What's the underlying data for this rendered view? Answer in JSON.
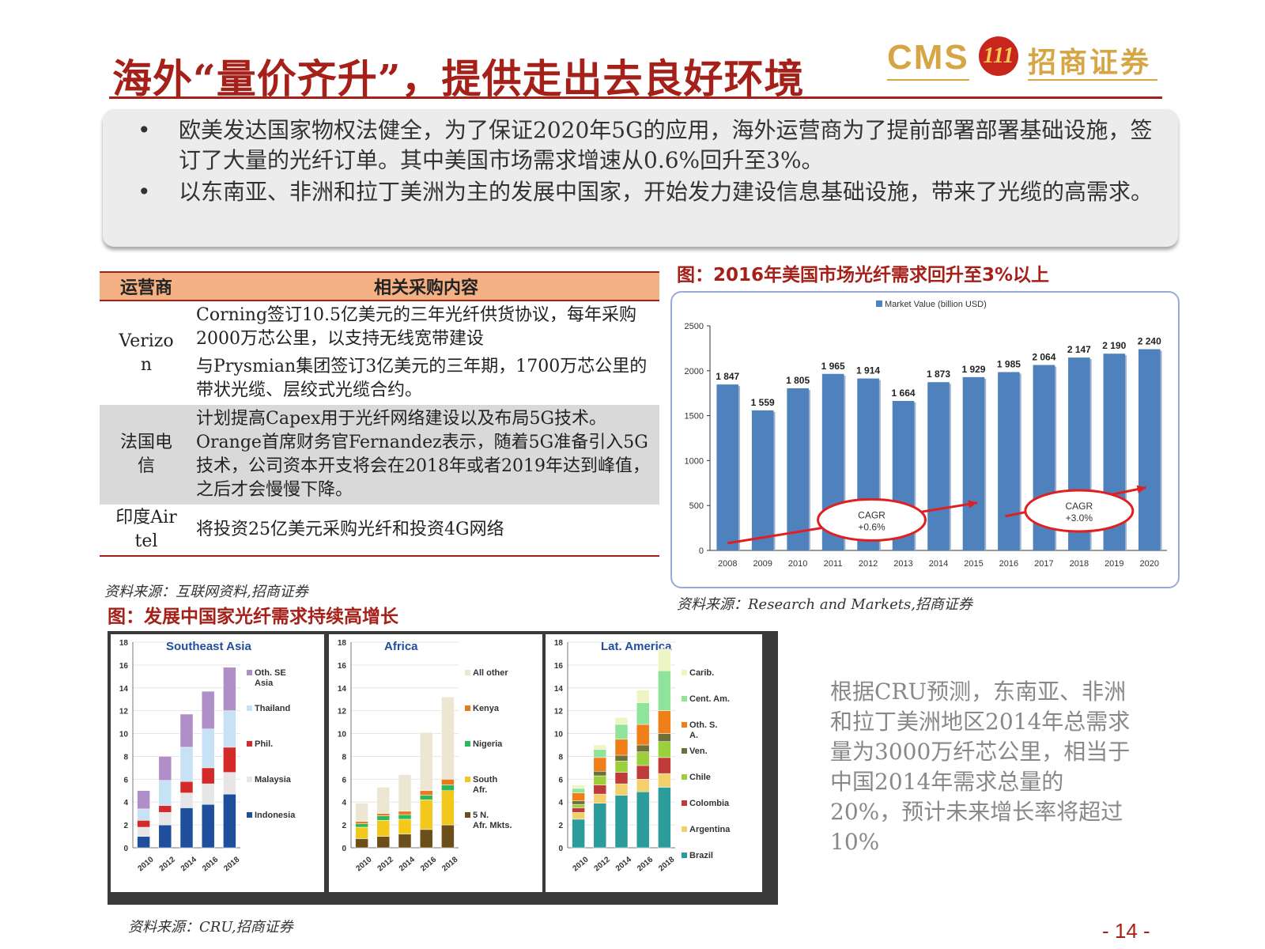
{
  "header": {
    "title": "海外“量价齐升”，提供走出去良好环境",
    "logo_cms": "CMS",
    "logo_mark": "111",
    "logo_text": "招商证券"
  },
  "summary": {
    "bullets": [
      {
        "dot": "•",
        "text": "欧美发达国家物权法健全，为了保证2020年5G的应用，海外运营商为了提前部署部署基础设施，签订了大量的光纤订单。其中美国市场需求增速从0.6%回升至3%。"
      },
      {
        "dot": "•",
        "text": "以东南亚、非洲和拉丁美洲为主的发展中国家，开始发力建设信息基础设施，带来了光缆的高需求。"
      }
    ]
  },
  "table": {
    "headers": [
      "运营商",
      "相关采购内容"
    ],
    "rows": [
      {
        "operator": "Verizon",
        "content": "Corning签订10.5亿美元的三年光纤供货协议，每年采购2000万芯公里，以支持无线宽带建设"
      },
      {
        "operator": "",
        "content": "与Prysmian集团签订3亿美元的三年期，1700万芯公里的带状光缆、层绞式光缆合约。"
      },
      {
        "operator": "法国电信",
        "content": "计划提高Capex用于光纤网络建设以及布局5G技术。Orange首席财务官Fernandez表示，随着5G准备引入5G技术，公司资本开支将会在2018年或者2019年达到峰值，之后才会慢慢下降。"
      },
      {
        "operator": "印度Airtel",
        "content": "将投资25亿美元采购光纤和投资4G网络"
      }
    ],
    "source": "资料来源：互联网资料,招商证券"
  },
  "fig_us": {
    "title": "图：2016年美国市场光纤需求回升至3%以上",
    "source": "资料来源：Research and Markets,招商证券"
  },
  "fig_dev": {
    "title": "图：发展中国家光纤需求持续高增长",
    "source": "资料来源：CRU,招商证券"
  },
  "cru_text": "根据CRU预测，东南亚、非洲和拉丁美洲地区2014年总需求量为3000万纤芯公里，相当于中国2014年需求总量的20%，预计未来增长率将超过10%",
  "page_number": "- 14 -",
  "chart_data": [
    {
      "type": "bar",
      "legend": "Market Value (billion USD)",
      "categories": [
        "2008",
        "2009",
        "2010",
        "2011",
        "2012",
        "2013",
        "2014",
        "2015",
        "2016",
        "2017",
        "2018",
        "2019",
        "2020"
      ],
      "values": [
        1847,
        1559,
        1805,
        1965,
        1914,
        1664,
        1873,
        1929,
        1985,
        2064,
        2147,
        2190,
        2240
      ],
      "labels": [
        "1 847",
        "1 559",
        "1 805",
        "1 965",
        "1 914",
        "1 664",
        "1 873",
        "1 929",
        "1 985",
        "2 064",
        "2 147",
        "2 190",
        "2 240"
      ],
      "ylim": [
        0,
        2500
      ],
      "yticks": [
        "0",
        "500",
        "1000",
        "1500",
        "2000",
        "2500"
      ],
      "annotations": [
        {
          "line1": "CAGR",
          "line2": "+0.6%"
        },
        {
          "line1": "CAGR",
          "line2": "+3.0%"
        }
      ],
      "color": "#4f81bd"
    },
    {
      "type": "bar",
      "stacked": true,
      "title": "Southeast Asia",
      "categories": [
        "2010",
        "2012",
        "2014",
        "2016",
        "2018"
      ],
      "ylim": [
        0,
        18
      ],
      "yticks": [
        "0",
        "2",
        "4",
        "6",
        "8",
        "10",
        "12",
        "14",
        "16",
        "18"
      ],
      "series": [
        {
          "name": "Indonesia",
          "color": "#1f4e9c",
          "values": [
            1.0,
            2.0,
            3.5,
            3.8,
            4.7
          ]
        },
        {
          "name": "Malaysia",
          "color": "#e6e6e6",
          "values": [
            0.8,
            1.1,
            1.3,
            1.8,
            1.9
          ]
        },
        {
          "name": "Phil.",
          "color": "#d42a2a",
          "values": [
            0.6,
            0.6,
            1.0,
            1.4,
            2.2
          ]
        },
        {
          "name": "Thailand",
          "color": "#c6e2f4",
          "values": [
            1.0,
            2.2,
            3.0,
            3.4,
            3.2
          ]
        },
        {
          "name": "Oth. SE Asia",
          "color": "#b08ec8",
          "values": [
            1.6,
            2.1,
            2.9,
            3.3,
            3.8
          ]
        }
      ],
      "legend_labels": [
        "Oth. SE Asia",
        "Thailand",
        "Phil.",
        "Malaysia",
        "Indonesia"
      ]
    },
    {
      "type": "bar",
      "stacked": true,
      "title": "Africa",
      "categories": [
        "2010",
        "2012",
        "2014",
        "2016",
        "2018"
      ],
      "ylim": [
        0,
        18
      ],
      "yticks": [
        "0",
        "2",
        "4",
        "6",
        "8",
        "10",
        "12",
        "14",
        "16",
        "18"
      ],
      "series": [
        {
          "name": "5 N. Afr. Mkts.",
          "color": "#6b4e1a",
          "values": [
            0.8,
            1.0,
            1.2,
            1.6,
            2.0
          ]
        },
        {
          "name": "South Afr.",
          "color": "#f2c81c",
          "values": [
            1.0,
            1.4,
            1.3,
            2.6,
            3.0
          ]
        },
        {
          "name": "Nigeria",
          "color": "#2eb85c",
          "values": [
            0.3,
            0.4,
            0.4,
            0.4,
            0.5
          ]
        },
        {
          "name": "Kenya",
          "color": "#e87a1e",
          "values": [
            0.2,
            0.2,
            0.3,
            0.4,
            0.5
          ]
        },
        {
          "name": "All other",
          "color": "#ede6d2",
          "values": [
            1.6,
            2.3,
            3.2,
            5.1,
            7.2
          ]
        }
      ],
      "legend_labels": [
        "All other",
        "Kenya",
        "Nigeria",
        "South Afr.",
        "5 N. Afr. Mkts."
      ]
    },
    {
      "type": "bar",
      "stacked": true,
      "title": "Lat. America",
      "categories": [
        "2010",
        "2012",
        "2014",
        "2016",
        "2018"
      ],
      "ylim": [
        0,
        18
      ],
      "yticks": [
        "0",
        "2",
        "4",
        "6",
        "8",
        "10",
        "12",
        "14",
        "16",
        "18"
      ],
      "series": [
        {
          "name": "Brazil",
          "color": "#2b9b9b",
          "values": [
            2.5,
            3.9,
            4.6,
            4.9,
            5.3
          ]
        },
        {
          "name": "Argentina",
          "color": "#f4d06c",
          "values": [
            0.6,
            0.8,
            1.0,
            1.1,
            1.2
          ]
        },
        {
          "name": "Colombia",
          "color": "#c03a3a",
          "values": [
            0.4,
            0.8,
            1.0,
            1.2,
            1.4
          ]
        },
        {
          "name": "Chile",
          "color": "#9ccf3c",
          "values": [
            0.3,
            0.8,
            1.0,
            1.2,
            1.4
          ]
        },
        {
          "name": "Ven.",
          "color": "#6f6f3a",
          "values": [
            0.3,
            0.4,
            0.5,
            0.6,
            0.7
          ]
        },
        {
          "name": "Oth. S. A.",
          "color": "#f07f18",
          "values": [
            0.7,
            1.2,
            1.4,
            1.8,
            2.0
          ]
        },
        {
          "name": "Cent. Am.",
          "color": "#8fe39b",
          "values": [
            0.4,
            0.7,
            1.3,
            1.9,
            3.5
          ]
        },
        {
          "name": "Carib.",
          "color": "#eef5c4",
          "values": [
            0.3,
            0.4,
            0.6,
            1.1,
            1.9
          ]
        }
      ],
      "legend_labels": [
        "Carib.",
        "Cent. Am.",
        "Oth. S. A.",
        "Ven.",
        "Chile",
        "Colombia",
        "Argentina",
        "Brazil"
      ]
    }
  ]
}
